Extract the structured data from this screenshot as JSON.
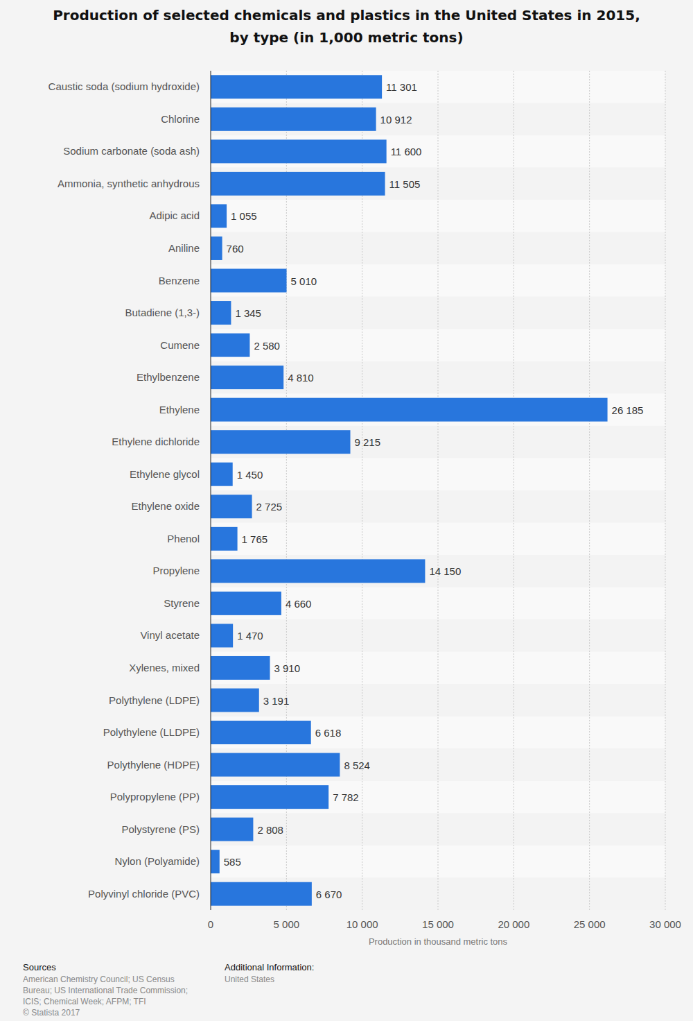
{
  "chart_data": {
    "type": "bar",
    "orientation": "horizontal",
    "title": "Production of selected chemicals and plastics in the United States in 2015, by type (in 1,000 metric tons)",
    "x_label": "Production in thousand metric tons",
    "categories": [
      "Caustic soda (sodium hydroxide)",
      "Chlorine",
      "Sodium carbonate (soda ash)",
      "Ammonia, synthetic anhydrous",
      "Adipic acid",
      "Aniline",
      "Benzene",
      "Butadiene (1,3-)",
      "Cumene",
      "Ethylbenzene",
      "Ethylene",
      "Ethylene dichloride",
      "Ethylene glycol",
      "Ethylene oxide",
      "Phenol",
      "Propylene",
      "Styrene",
      "Vinyl acetate",
      "Xylenes, mixed",
      "Polythylene (LDPE)",
      "Polythylene (LLDPE)",
      "Polythylene (HDPE)",
      "Polypropylene (PP)",
      "Polystyrene (PS)",
      "Nylon (Polyamide)",
      "Polyvinyl chloride (PVC)"
    ],
    "values": [
      11301,
      10912,
      11600,
      11505,
      1055,
      760,
      5010,
      1345,
      2580,
      4810,
      26185,
      9215,
      1450,
      2725,
      1765,
      14150,
      4660,
      1470,
      3910,
      3191,
      6618,
      8524,
      7782,
      2808,
      585,
      6670
    ],
    "value_labels": [
      "11 301",
      "10 912",
      "11 600",
      "11 505",
      "1 055",
      "760",
      "5 010",
      "1 345",
      "2 580",
      "4 810",
      "26 185",
      "9 215",
      "1 450",
      "2 725",
      "1 765",
      "14 150",
      "4 660",
      "1 470",
      "3 910",
      "3 191",
      "6 618",
      "8 524",
      "7 782",
      "2 808",
      "585",
      "6 670"
    ],
    "data_labels": true,
    "color": "#2876dd",
    "xlim": [
      0,
      30000
    ],
    "xticks": [
      0,
      {
        "value": 5000,
        "label": "5 000"
      },
      {
        "value": 10000,
        "label": "10 000"
      },
      {
        "value": 15000,
        "label": "15 000"
      },
      {
        "value": 20000,
        "label": "20 000"
      },
      {
        "value": 25000,
        "label": "25 000"
      },
      {
        "value": 30000,
        "label": "30 000"
      }
    ],
    "grid": true,
    "sources_heading": "Sources",
    "sources": [
      "American Chemistry Council; US Census",
      "Bureau; US International Trade Commission;",
      "ICIS; Chemical Week; AFPM; TFI",
      "© Statista 2017"
    ],
    "additional_info_heading": "Additional Information:",
    "additional_info": "United States"
  }
}
